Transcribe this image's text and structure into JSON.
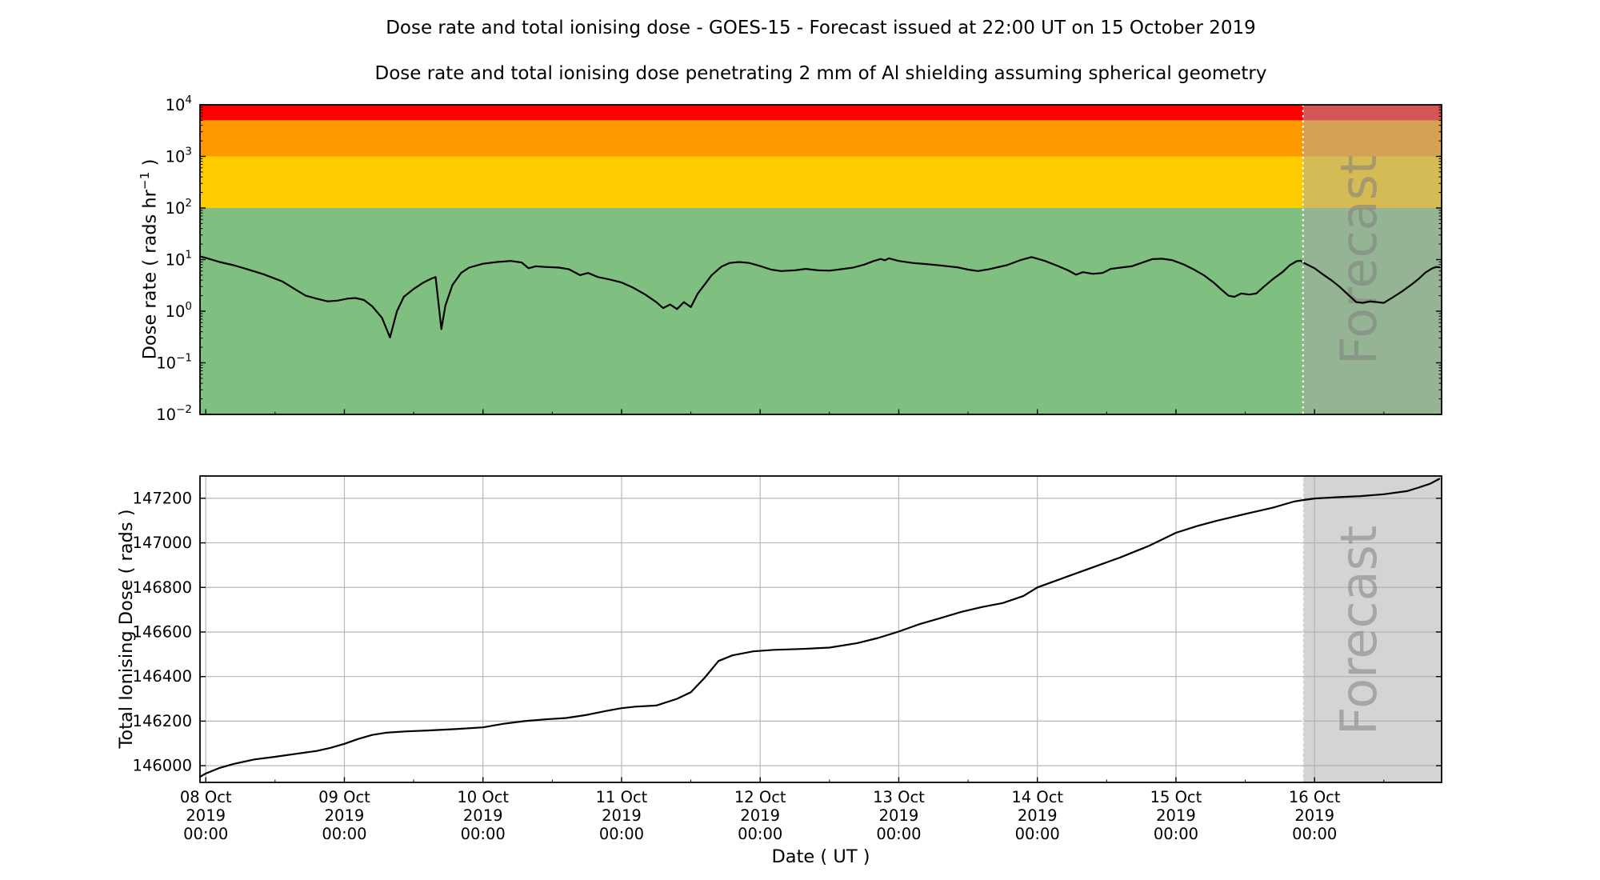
{
  "figure": {
    "title": "Dose rate and total ionising dose - GOES-15 - Forecast issued at 22:00 UT on 15 October 2019",
    "subtitle": "Dose rate and total ionising dose penetrating 2 mm of Al shielding assuming spherical geometry",
    "xlabel": "Date ( UT )",
    "forecast_label": "Forecast",
    "forecast_overlay_color": "#A9A9A9",
    "forecast_text_color": "#808080",
    "forecast_line_color": "#ffffff",
    "gridline_color": "#b8b8b8",
    "spine_color": "#000000"
  },
  "x_axis": {
    "xlim_hours": [
      -1,
      214
    ],
    "hours_origin": "08 Oct 2019 00:00 UT",
    "forecast_start_hours": 190,
    "ticks": [
      {
        "hours": 0,
        "lines": [
          "08 Oct",
          "2019",
          "00:00"
        ]
      },
      {
        "hours": 24,
        "lines": [
          "09 Oct",
          "2019",
          "00:00"
        ]
      },
      {
        "hours": 48,
        "lines": [
          "10 Oct",
          "2019",
          "00:00"
        ]
      },
      {
        "hours": 72,
        "lines": [
          "11 Oct",
          "2019",
          "00:00"
        ]
      },
      {
        "hours": 96,
        "lines": [
          "12 Oct",
          "2019",
          "00:00"
        ]
      },
      {
        "hours": 120,
        "lines": [
          "13 Oct",
          "2019",
          "00:00"
        ]
      },
      {
        "hours": 144,
        "lines": [
          "14 Oct",
          "2019",
          "00:00"
        ]
      },
      {
        "hours": 168,
        "lines": [
          "15 Oct",
          "2019",
          "00:00"
        ]
      },
      {
        "hours": 192,
        "lines": [
          "16 Oct",
          "2019",
          "00:00"
        ]
      }
    ]
  },
  "chart_data": [
    {
      "type": "line",
      "name": "dose-rate",
      "ylabel_pre": "Dose rate ( rads hr",
      "ylabel_sup": "−1",
      "ylabel_post": " )",
      "yscale": "log",
      "ylim": [
        0.01,
        10000
      ],
      "ytick_exponents": [
        4,
        3,
        2,
        1,
        0,
        -1,
        -2
      ],
      "bands": [
        {
          "name": "red",
          "from": 5000,
          "to": 10000,
          "color": "#FF0000"
        },
        {
          "name": "orange",
          "from": 1000,
          "to": 5000,
          "color": "#FF9900"
        },
        {
          "name": "yellow",
          "from": 100,
          "to": 1000,
          "color": "#FFCC00"
        },
        {
          "name": "green",
          "from": 0.01,
          "to": 100,
          "color": "#7FBF7F"
        }
      ],
      "series": [
        {
          "name": "dose_rate_rads_per_hr",
          "color": "#000000",
          "points_hours": [
            [
              -1,
              11.5
            ],
            [
              0,
              10.8
            ],
            [
              2.4,
              9.0
            ],
            [
              4.8,
              7.8
            ],
            [
              7.2,
              6.5
            ],
            [
              10,
              5.2
            ],
            [
              13.2,
              3.8
            ],
            [
              15.6,
              2.6
            ],
            [
              17.3,
              2.0
            ],
            [
              19.2,
              1.75
            ],
            [
              21.1,
              1.55
            ],
            [
              22.8,
              1.6
            ],
            [
              24.5,
              1.75
            ],
            [
              25.9,
              1.8
            ],
            [
              27.4,
              1.65
            ],
            [
              28.8,
              1.25
            ],
            [
              30.5,
              0.75
            ],
            [
              31.9,
              0.31
            ],
            [
              33.1,
              1.0
            ],
            [
              34.3,
              1.9
            ],
            [
              36,
              2.7
            ],
            [
              37.7,
              3.6
            ],
            [
              39.1,
              4.3
            ],
            [
              39.8,
              4.6
            ],
            [
              40.8,
              0.45
            ],
            [
              41.5,
              1.3
            ],
            [
              42.7,
              3.2
            ],
            [
              44.2,
              5.5
            ],
            [
              45.6,
              7.0
            ],
            [
              48,
              8.3
            ],
            [
              50.4,
              9.0
            ],
            [
              52.8,
              9.4
            ],
            [
              54.7,
              8.8
            ],
            [
              55.9,
              6.8
            ],
            [
              57.1,
              7.4
            ],
            [
              58.8,
              7.2
            ],
            [
              61.2,
              7.0
            ],
            [
              62.9,
              6.5
            ],
            [
              64.8,
              5.0
            ],
            [
              66.2,
              5.5
            ],
            [
              67.9,
              4.6
            ],
            [
              69.6,
              4.2
            ],
            [
              72,
              3.6
            ],
            [
              73.9,
              2.9
            ],
            [
              76.1,
              2.1
            ],
            [
              78,
              1.5
            ],
            [
              79.2,
              1.15
            ],
            [
              80.4,
              1.35
            ],
            [
              81.6,
              1.1
            ],
            [
              82.8,
              1.5
            ],
            [
              84,
              1.2
            ],
            [
              85.2,
              2.2
            ],
            [
              86.4,
              3.3
            ],
            [
              87.6,
              5.0
            ],
            [
              89.3,
              7.3
            ],
            [
              90.7,
              8.6
            ],
            [
              92.4,
              9.0
            ],
            [
              94.1,
              8.6
            ],
            [
              96,
              7.5
            ],
            [
              97.9,
              6.4
            ],
            [
              99.6,
              6.0
            ],
            [
              102,
              6.2
            ],
            [
              103.9,
              6.6
            ],
            [
              106.1,
              6.2
            ],
            [
              108,
              6.1
            ],
            [
              109.9,
              6.5
            ],
            [
              112.1,
              7.0
            ],
            [
              114,
              8.0
            ],
            [
              115.7,
              9.4
            ],
            [
              116.9,
              10.3
            ],
            [
              117.6,
              9.7
            ],
            [
              118.3,
              10.6
            ],
            [
              120,
              9.4
            ],
            [
              122.4,
              8.6
            ],
            [
              124.8,
              8.2
            ],
            [
              127.2,
              7.7
            ],
            [
              130.1,
              7.1
            ],
            [
              132,
              6.4
            ],
            [
              133.7,
              6.0
            ],
            [
              135.6,
              6.5
            ],
            [
              138.7,
              7.8
            ],
            [
              141.1,
              9.8
            ],
            [
              143,
              11.2
            ],
            [
              145.2,
              9.5
            ],
            [
              147.6,
              7.5
            ],
            [
              149.3,
              6.2
            ],
            [
              150.7,
              5.1
            ],
            [
              151.9,
              5.7
            ],
            [
              153.6,
              5.3
            ],
            [
              155.3,
              5.5
            ],
            [
              156.7,
              6.6
            ],
            [
              158.4,
              7.0
            ],
            [
              160.3,
              7.4
            ],
            [
              162,
              8.6
            ],
            [
              163.9,
              10.2
            ],
            [
              165.6,
              10.4
            ],
            [
              167.3,
              9.8
            ],
            [
              169.2,
              8.2
            ],
            [
              170.9,
              6.6
            ],
            [
              172.8,
              5.0
            ],
            [
              174.5,
              3.6
            ],
            [
              175.9,
              2.6
            ],
            [
              177.1,
              2.0
            ],
            [
              178.1,
              1.9
            ],
            [
              179.3,
              2.2
            ],
            [
              180.7,
              2.1
            ],
            [
              181.9,
              2.2
            ],
            [
              183.1,
              2.9
            ],
            [
              184.8,
              4.2
            ],
            [
              186.5,
              5.8
            ],
            [
              187.7,
              7.8
            ],
            [
              188.9,
              9.3
            ],
            [
              189.6,
              9.5
            ],
            [
              190,
              8.8
            ],
            [
              192,
              6.8
            ],
            [
              193.2,
              5.4
            ],
            [
              194.9,
              4.0
            ],
            [
              196.3,
              3.0
            ],
            [
              198,
              2.0
            ],
            [
              199.2,
              1.5
            ],
            [
              200.4,
              1.45
            ],
            [
              201.6,
              1.55
            ],
            [
              202.8,
              1.5
            ],
            [
              204,
              1.45
            ],
            [
              205.7,
              1.9
            ],
            [
              207.1,
              2.4
            ],
            [
              208.8,
              3.3
            ],
            [
              210,
              4.2
            ],
            [
              211.2,
              5.6
            ],
            [
              212.4,
              6.8
            ],
            [
              213.1,
              7.2
            ],
            [
              213.6,
              7.1
            ]
          ]
        }
      ]
    },
    {
      "type": "line",
      "name": "total-ionising-dose",
      "ylabel": "Total Ionising Dose ( rads )",
      "yscale": "linear",
      "ylim": [
        145925,
        147300
      ],
      "yticks": [
        146000,
        146200,
        146400,
        146600,
        146800,
        147000,
        147200
      ],
      "grid": true,
      "series": [
        {
          "name": "total_ionising_dose_rads",
          "color": "#000000",
          "points_hours": [
            [
              -1,
              145950
            ],
            [
              0,
              145965
            ],
            [
              2.4,
              145990
            ],
            [
              4.8,
              146008
            ],
            [
              8.4,
              146028
            ],
            [
              12,
              146040
            ],
            [
              15.6,
              146053
            ],
            [
              19.2,
              146066
            ],
            [
              21.6,
              146080
            ],
            [
              24,
              146098
            ],
            [
              26.4,
              146120
            ],
            [
              28.8,
              146138
            ],
            [
              31.2,
              146148
            ],
            [
              34.8,
              146154
            ],
            [
              38.4,
              146158
            ],
            [
              43.2,
              146164
            ],
            [
              48,
              146172
            ],
            [
              51.6,
              146188
            ],
            [
              55.2,
              146200
            ],
            [
              58.8,
              146208
            ],
            [
              62.4,
              146214
            ],
            [
              66,
              146228
            ],
            [
              69.6,
              146247
            ],
            [
              72,
              146258
            ],
            [
              74.4,
              146265
            ],
            [
              78,
              146270
            ],
            [
              81.6,
              146300
            ],
            [
              84,
              146330
            ],
            [
              86.4,
              146395
            ],
            [
              88.8,
              146470
            ],
            [
              91.2,
              146495
            ],
            [
              94.8,
              146513
            ],
            [
              98.4,
              146520
            ],
            [
              103.2,
              146524
            ],
            [
              108,
              146530
            ],
            [
              112.8,
              146550
            ],
            [
              116.4,
              146573
            ],
            [
              120,
              146602
            ],
            [
              123.6,
              146635
            ],
            [
              127.2,
              146662
            ],
            [
              130.8,
              146690
            ],
            [
              134.4,
              146712
            ],
            [
              138,
              146730
            ],
            [
              141.6,
              146762
            ],
            [
              144,
              146800
            ],
            [
              148.8,
              146845
            ],
            [
              153.6,
              146890
            ],
            [
              158.4,
              146935
            ],
            [
              163.2,
              146985
            ],
            [
              168,
              147045
            ],
            [
              171.6,
              147075
            ],
            [
              175.2,
              147100
            ],
            [
              180,
              147130
            ],
            [
              184.8,
              147158
            ],
            [
              188.4,
              147185
            ],
            [
              190,
              147192
            ],
            [
              192,
              147199
            ],
            [
              196,
              147205
            ],
            [
              200,
              147210
            ],
            [
              204,
              147218
            ],
            [
              208,
              147232
            ],
            [
              210,
              147248
            ],
            [
              212,
              147265
            ],
            [
              213.6,
              147287
            ]
          ]
        }
      ]
    }
  ]
}
